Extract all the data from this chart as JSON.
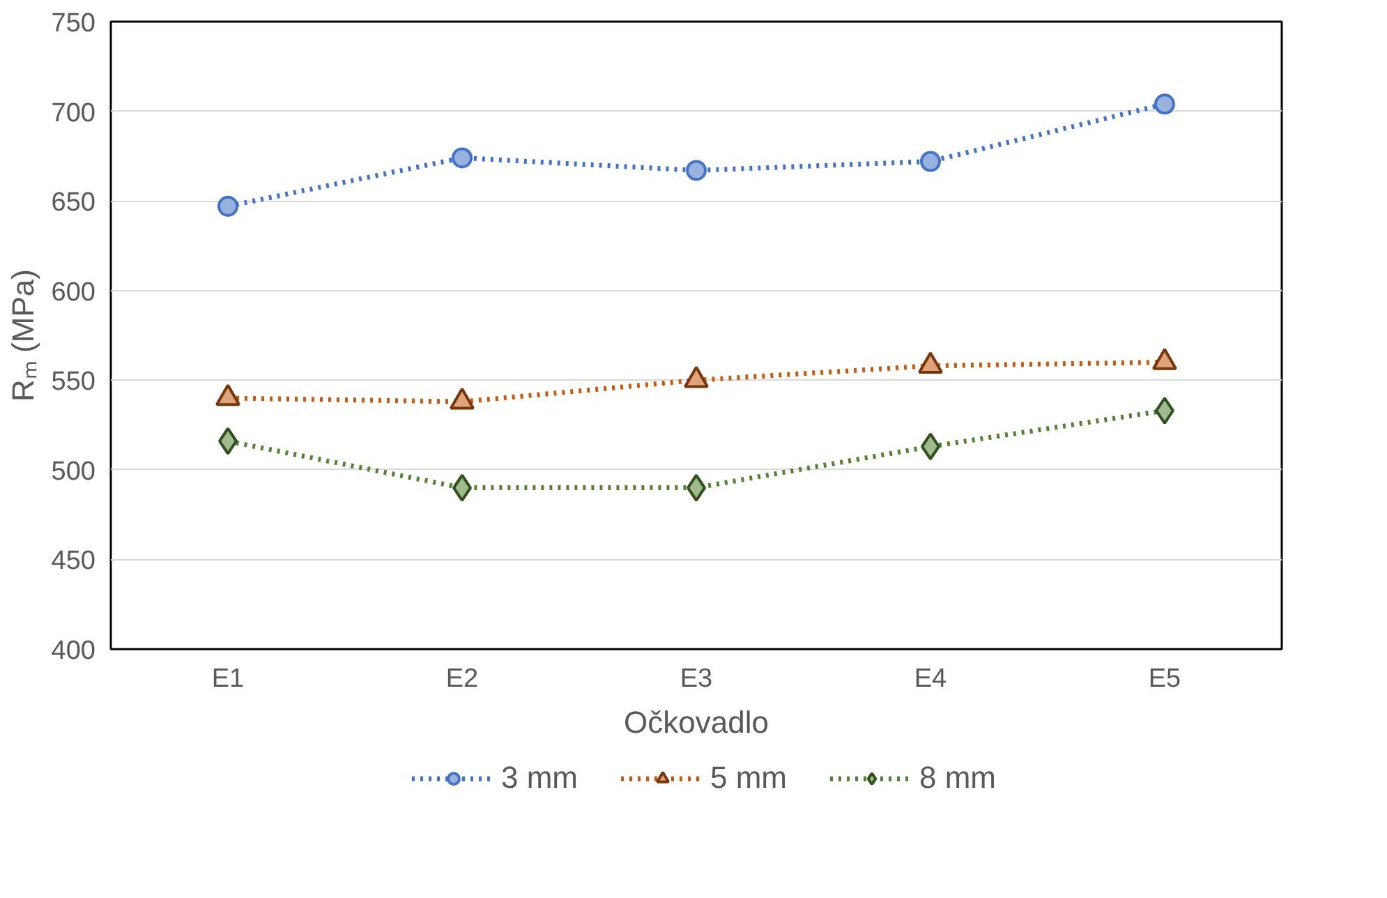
{
  "chart_data": {
    "type": "line",
    "xlabel": "Očkovadlo",
    "ylabel": "Rₘ (MPa)",
    "categories": [
      "E1",
      "E2",
      "E3",
      "E4",
      "E5"
    ],
    "series": [
      {
        "name": "3 mm",
        "color": "#4472c4",
        "marker": "circle",
        "values": [
          647,
          674,
          667,
          672,
          704
        ]
      },
      {
        "name": "5 mm",
        "color": "#c55a11",
        "marker": "triangle",
        "values": [
          540,
          538,
          550,
          558,
          560
        ]
      },
      {
        "name": "8 mm",
        "color": "#548235",
        "marker": "diamond",
        "values": [
          516,
          490,
          490,
          513,
          533
        ]
      }
    ],
    "ylim": [
      400,
      750
    ],
    "yticks": [
      400,
      450,
      500,
      550,
      600,
      650,
      700,
      750
    ],
    "grid": "y",
    "legend": "bottom",
    "line_style": "dotted"
  }
}
